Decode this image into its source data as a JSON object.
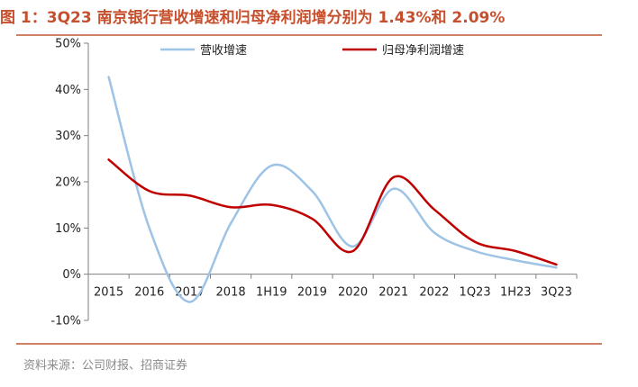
{
  "figure": {
    "title": "图 1：3Q23 南京银行营收增速和归母净利润增分别为 1.43%和 2.09%",
    "source": "资料来源：公司财报、招商证券"
  },
  "colors": {
    "title": "#c6502e",
    "rule": "#d08064",
    "revenue_line": "#9dc3e6",
    "profit_line": "#c00000"
  },
  "chart_data": {
    "type": "line",
    "categories": [
      "2015",
      "2016",
      "2017",
      "2018",
      "1H19",
      "2019",
      "2020",
      "2021",
      "2022",
      "1Q23",
      "1H23",
      "3Q23"
    ],
    "y_ticks": [
      "-10%",
      "0%",
      "10%",
      "20%",
      "30%",
      "40%",
      "50%"
    ],
    "ylim": [
      -10,
      50
    ],
    "y_unit": "%",
    "legend_position": "top",
    "smooth": true,
    "series": [
      {
        "name": "营收增速",
        "color": "#9dc3e6",
        "values": [
          42.7,
          10.0,
          -6.0,
          11.0,
          23.5,
          18.0,
          6.0,
          18.5,
          9.0,
          5.0,
          3.0,
          1.43
        ]
      },
      {
        "name": "归母净利润增速",
        "color": "#c00000",
        "values": [
          24.8,
          18.0,
          17.0,
          14.5,
          15.0,
          12.0,
          5.0,
          21.0,
          14.0,
          7.0,
          5.0,
          2.09
        ]
      }
    ]
  }
}
